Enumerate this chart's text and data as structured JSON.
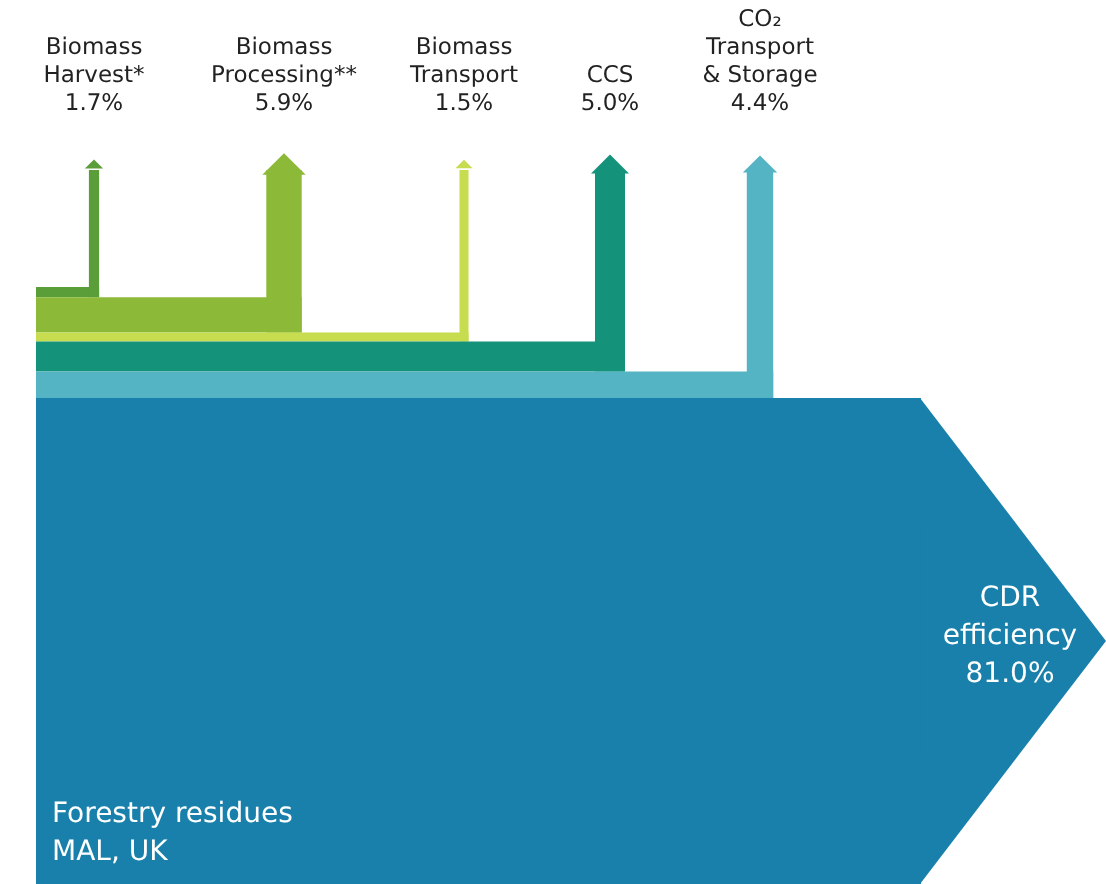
{
  "chart_data": {
    "type": "other",
    "categories": [
      "Biomass Harvest*",
      "Biomass Processing**",
      "Biomass Transport",
      "CCS",
      "CO₂ Transport & Storage",
      "CDR efficiency"
    ],
    "values": [
      1.7,
      5.9,
      1.5,
      5.0,
      4.4,
      81.0
    ],
    "value_labels": [
      "1.7%",
      "5.9%",
      "1.5%",
      "5.0%",
      "4.4%",
      "81.0%"
    ],
    "colors": [
      "#5a9e3a",
      "#8cba38",
      "#c8dc50",
      "#15937a",
      "#55b4c4",
      "#1880aa"
    ],
    "annotations": [
      "Forestry residues",
      "MAL, UK"
    ]
  }
}
